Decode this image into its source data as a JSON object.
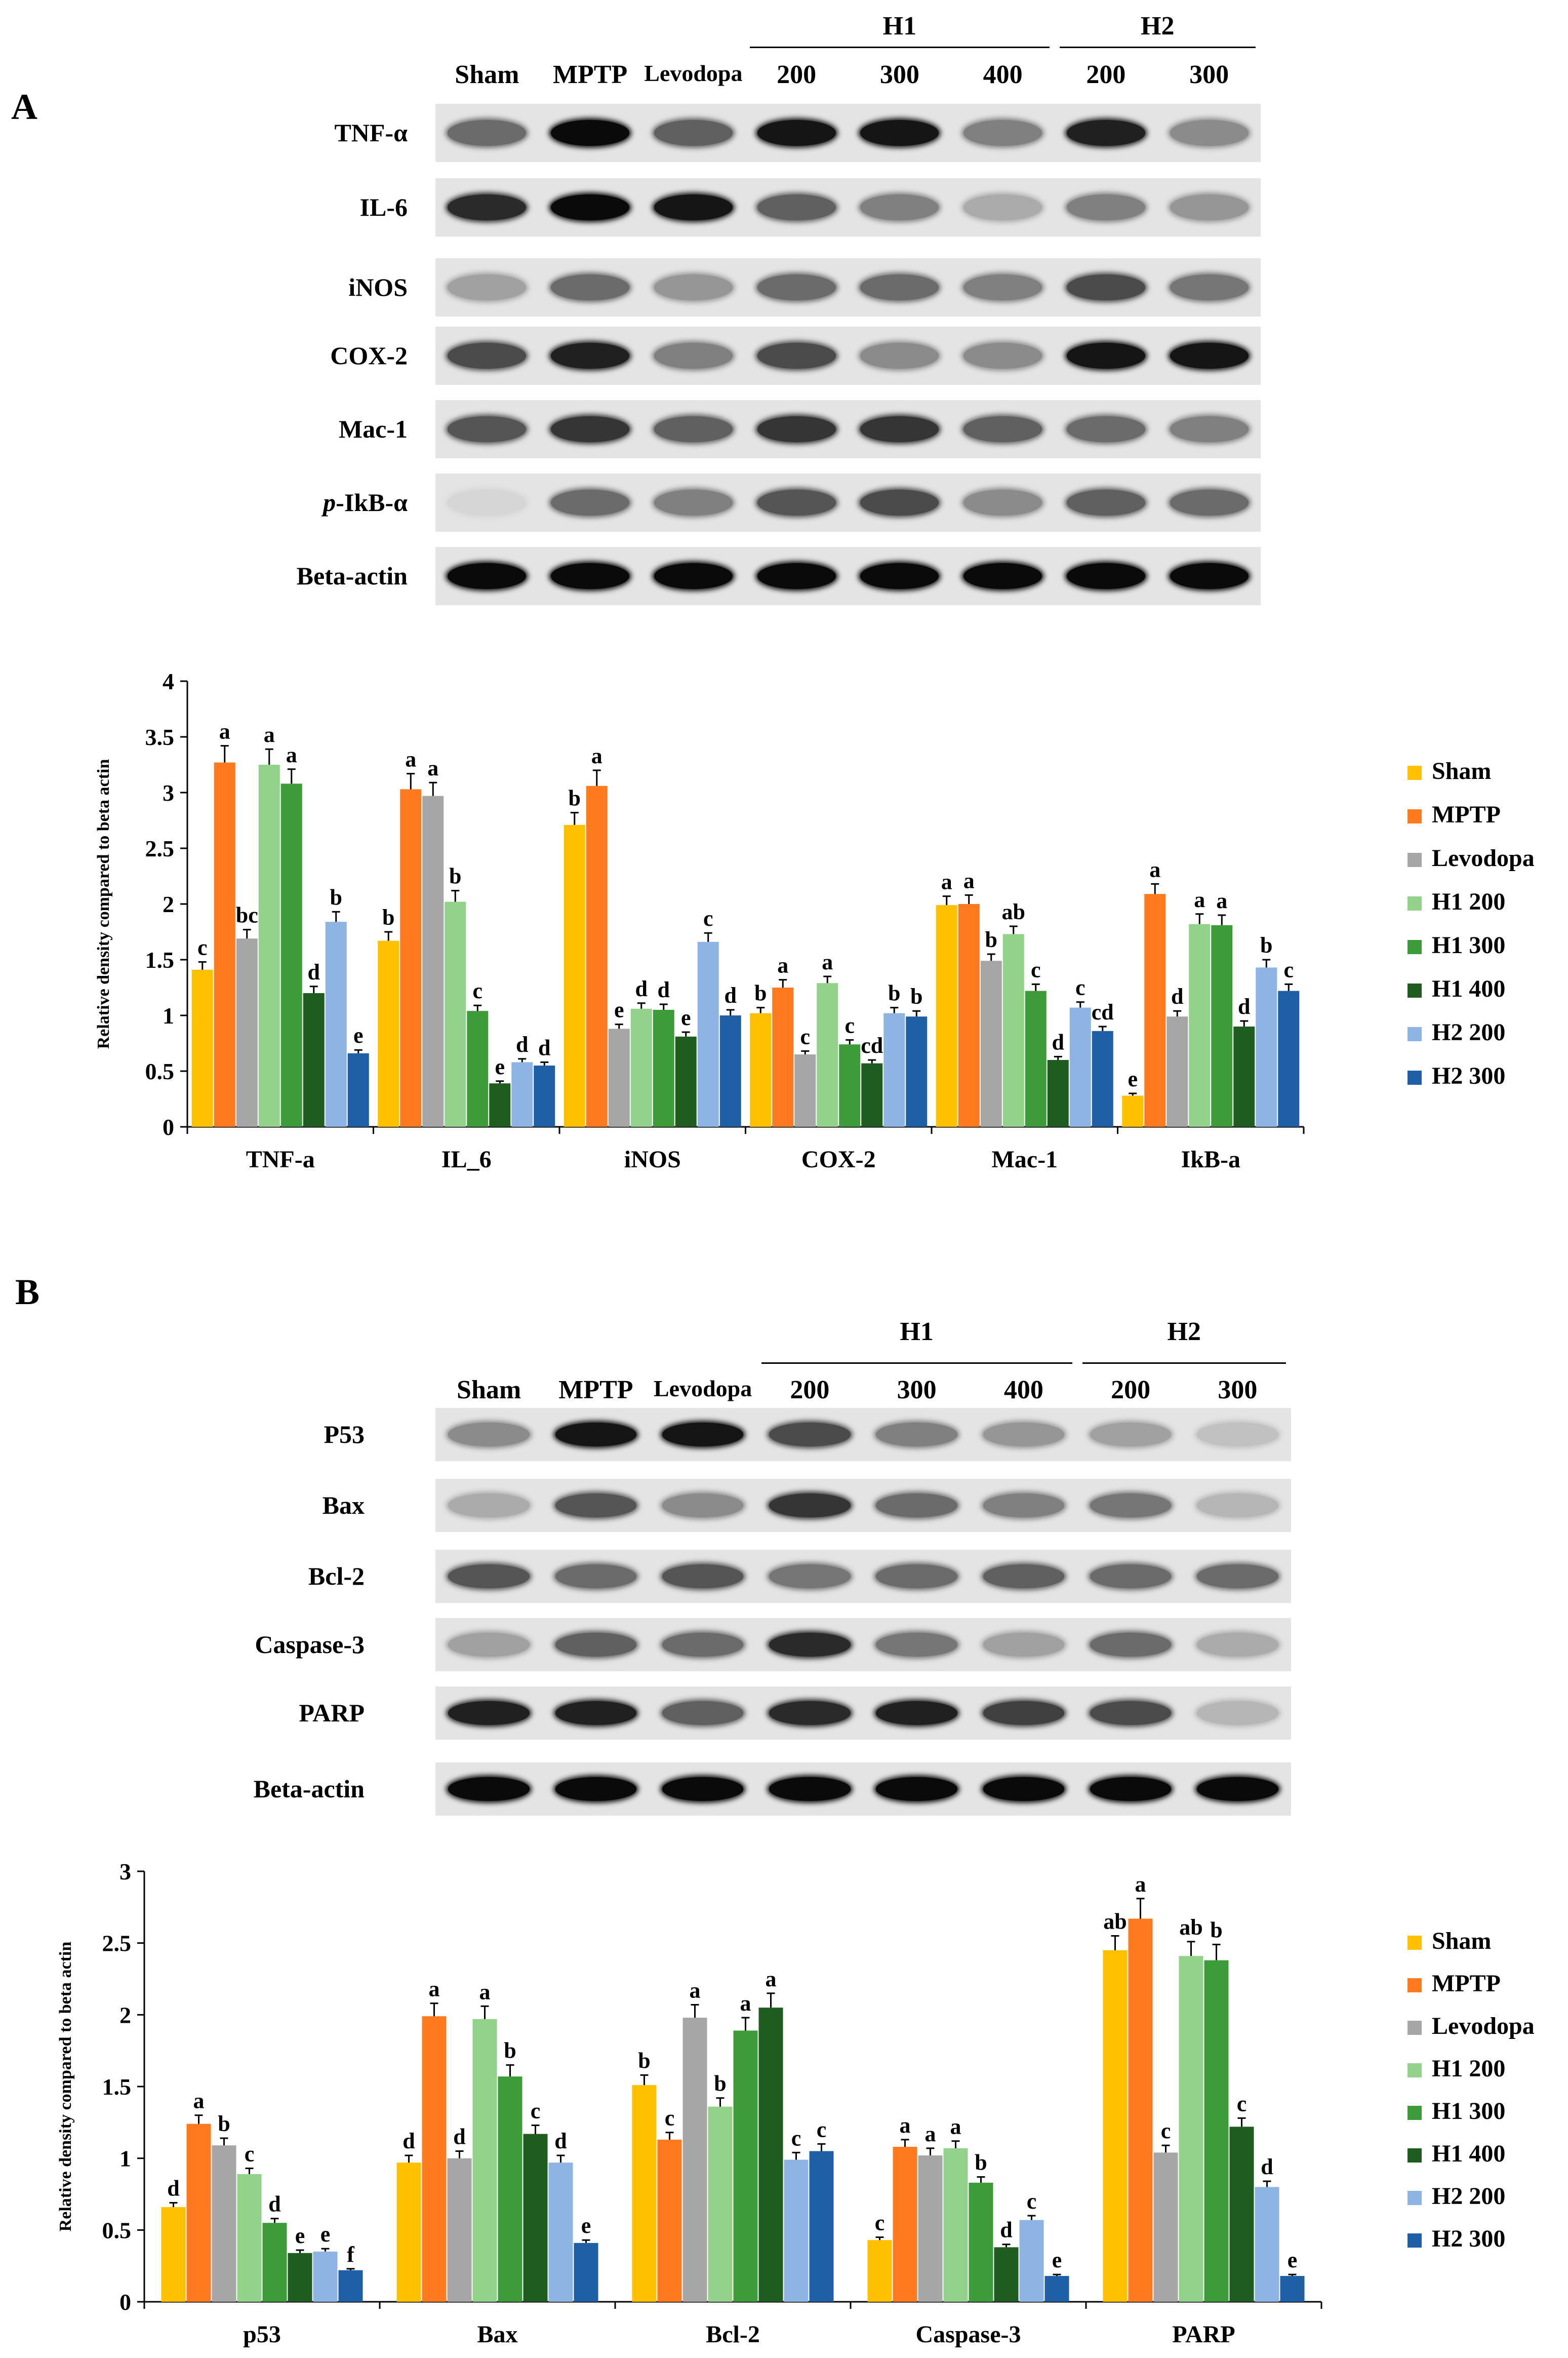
{
  "colors": {
    "Sham": "#FFC000",
    "MPTP": "#FF7A1F",
    "Levodopa": "#A6A6A6",
    "H1 200": "#92D28A",
    "H1 300": "#3E9B3A",
    "H1 400": "#1F5C1F",
    "H2 200": "#8DB4E2",
    "H2 300": "#1F5FA6"
  },
  "panelA": {
    "letter": "A",
    "lanes": [
      "Sham",
      "MPTP",
      "Levodopa",
      "200",
      "300",
      "400",
      "200",
      "300"
    ],
    "groups": [
      {
        "label": "H1"
      },
      {
        "label": "H2"
      }
    ],
    "rows": [
      {
        "label": "TNF-α",
        "intensity": [
          0.55,
          1.0,
          0.6,
          0.95,
          0.95,
          0.45,
          0.9,
          0.4
        ]
      },
      {
        "label": "IL-6",
        "intensity": [
          0.85,
          1.0,
          0.95,
          0.6,
          0.45,
          0.25,
          0.45,
          0.35
        ]
      },
      {
        "label": "iNOS",
        "intensity": [
          0.3,
          0.55,
          0.35,
          0.55,
          0.55,
          0.45,
          0.7,
          0.5
        ]
      },
      {
        "label": "COX-2",
        "intensity": [
          0.7,
          0.9,
          0.45,
          0.7,
          0.4,
          0.4,
          0.95,
          0.95
        ]
      },
      {
        "label": "Mac-1",
        "intensity": [
          0.65,
          0.8,
          0.6,
          0.8,
          0.8,
          0.6,
          0.55,
          0.45
        ]
      },
      {
        "label": "p-IkB-α",
        "prefix": "p",
        "suffix": "-IkB-α",
        "intensity": [
          0.05,
          0.55,
          0.45,
          0.65,
          0.7,
          0.4,
          0.6,
          0.55
        ]
      },
      {
        "label": "Beta-actin",
        "intensity": [
          1.0,
          1.0,
          1.0,
          1.0,
          1.0,
          1.0,
          1.0,
          1.0
        ]
      }
    ]
  },
  "panelB": {
    "letter": "B",
    "lanes": [
      "Sham",
      "MPTP",
      "Levodopa",
      "200",
      "300",
      "400",
      "200",
      "300"
    ],
    "groups": [
      {
        "label": "H1"
      },
      {
        "label": "H2"
      }
    ],
    "rows": [
      {
        "label": "P53",
        "intensity": [
          0.4,
          0.95,
          0.95,
          0.7,
          0.45,
          0.35,
          0.3,
          0.15
        ]
      },
      {
        "label": "Bax",
        "intensity": [
          0.25,
          0.65,
          0.4,
          0.8,
          0.55,
          0.45,
          0.5,
          0.2
        ]
      },
      {
        "label": "Bcl-2",
        "intensity": [
          0.65,
          0.55,
          0.65,
          0.5,
          0.55,
          0.6,
          0.55,
          0.55
        ]
      },
      {
        "label": "Caspase-3",
        "intensity": [
          0.3,
          0.6,
          0.55,
          0.85,
          0.5,
          0.3,
          0.55,
          0.25
        ]
      },
      {
        "label": "PARP",
        "intensity": [
          0.9,
          0.9,
          0.6,
          0.85,
          0.9,
          0.75,
          0.7,
          0.2
        ]
      },
      {
        "label": "Beta-actin",
        "intensity": [
          1.0,
          1.0,
          1.0,
          1.0,
          1.0,
          1.0,
          1.0,
          1.0
        ]
      }
    ]
  },
  "chart_data": [
    {
      "type": "bar",
      "ylabel": "Relative density compared to beta actin",
      "ylim": [
        0,
        4
      ],
      "yticks": [
        "0",
        "0.5",
        "1",
        "1.5",
        "2",
        "2.5",
        "3",
        "3.5",
        "4"
      ],
      "ytick_values": [
        0,
        0.5,
        1,
        1.5,
        2,
        2.5,
        3,
        3.5,
        4
      ],
      "categories": [
        "TNF-a",
        "IL_6",
        "iNOS",
        "COX-2",
        "Mac-1",
        "IkB-a"
      ],
      "legend_position": "right",
      "series": [
        {
          "name": "Sham",
          "values": [
            1.41,
            1.67,
            2.71,
            1.02,
            1.99,
            0.28
          ],
          "errors": [
            0.07,
            0.08,
            0.11,
            0.05,
            0.08,
            0.02
          ],
          "letters": [
            "c",
            "b",
            "b",
            "b",
            "a",
            "e"
          ]
        },
        {
          "name": "MPTP",
          "values": [
            3.27,
            3.03,
            3.06,
            1.25,
            2.0,
            2.09
          ],
          "errors": [
            0.15,
            0.14,
            0.14,
            0.07,
            0.08,
            0.09
          ],
          "letters": [
            "a",
            "a",
            "a",
            "a",
            "a",
            "a"
          ]
        },
        {
          "name": "Levodopa",
          "values": [
            1.69,
            2.97,
            0.88,
            0.65,
            1.49,
            0.99
          ],
          "errors": [
            0.08,
            0.12,
            0.04,
            0.03,
            0.06,
            0.05
          ],
          "letters": [
            "bc",
            "a",
            "e",
            "c",
            "b",
            "d"
          ]
        },
        {
          "name": "H1 200",
          "values": [
            3.25,
            2.02,
            1.06,
            1.29,
            1.73,
            1.82
          ],
          "errors": [
            0.14,
            0.1,
            0.05,
            0.06,
            0.07,
            0.09
          ],
          "letters": [
            "a",
            "b",
            "d",
            "a",
            "ab",
            "a"
          ]
        },
        {
          "name": "H1 300",
          "values": [
            3.08,
            1.04,
            1.05,
            0.74,
            1.22,
            1.81
          ],
          "errors": [
            0.13,
            0.05,
            0.05,
            0.04,
            0.06,
            0.09
          ],
          "letters": [
            "a",
            "c",
            "d",
            "c",
            "c",
            "a"
          ]
        },
        {
          "name": "H1 400",
          "values": [
            1.2,
            0.39,
            0.81,
            0.57,
            0.6,
            0.9
          ],
          "errors": [
            0.06,
            0.02,
            0.04,
            0.03,
            0.03,
            0.05
          ],
          "letters": [
            "d",
            "e",
            "e",
            "cd",
            "d",
            "d"
          ]
        },
        {
          "name": "H2 200",
          "values": [
            1.84,
            0.58,
            1.66,
            1.02,
            1.07,
            1.43
          ],
          "errors": [
            0.09,
            0.03,
            0.08,
            0.05,
            0.05,
            0.07
          ],
          "letters": [
            "b",
            "d",
            "c",
            "b",
            "c",
            "b"
          ]
        },
        {
          "name": "H2 300",
          "values": [
            0.66,
            0.55,
            1.0,
            0.99,
            0.86,
            1.22
          ],
          "errors": [
            0.03,
            0.03,
            0.05,
            0.05,
            0.04,
            0.06
          ],
          "letters": [
            "e",
            "d",
            "d",
            "b",
            "cd",
            "c"
          ]
        }
      ]
    },
    {
      "type": "bar",
      "ylabel": "Relative density compared to beta actin",
      "ylim": [
        0,
        3
      ],
      "yticks": [
        "0",
        "0.5",
        "1",
        "1.5",
        "2",
        "2.5",
        "3"
      ],
      "ytick_values": [
        0,
        0.5,
        1,
        1.5,
        2,
        2.5,
        3
      ],
      "categories": [
        "p53",
        "Bax",
        "Bcl-2",
        "Caspase-3",
        "PARP"
      ],
      "legend_position": "right",
      "series": [
        {
          "name": "Sham",
          "values": [
            0.66,
            0.97,
            1.51,
            0.43,
            2.45
          ],
          "errors": [
            0.03,
            0.05,
            0.07,
            0.02,
            0.1
          ],
          "letters": [
            "d",
            "d",
            "b",
            "c",
            "ab"
          ]
        },
        {
          "name": "MPTP",
          "values": [
            1.24,
            1.99,
            1.13,
            1.08,
            2.67
          ],
          "errors": [
            0.06,
            0.09,
            0.05,
            0.05,
            0.14
          ],
          "letters": [
            "a",
            "a",
            "c",
            "a",
            "a"
          ]
        },
        {
          "name": "Levodopa",
          "values": [
            1.09,
            1.0,
            1.98,
            1.02,
            1.04
          ],
          "errors": [
            0.05,
            0.05,
            0.09,
            0.05,
            0.05
          ],
          "letters": [
            "b",
            "d",
            "a",
            "a",
            "c"
          ]
        },
        {
          "name": "H1 200",
          "values": [
            0.89,
            1.97,
            1.36,
            1.07,
            2.41
          ],
          "errors": [
            0.04,
            0.09,
            0.06,
            0.05,
            0.1
          ],
          "letters": [
            "c",
            "a",
            "b",
            "a",
            "ab"
          ]
        },
        {
          "name": "H1 300",
          "values": [
            0.55,
            1.57,
            1.89,
            0.83,
            2.38
          ],
          "errors": [
            0.03,
            0.08,
            0.09,
            0.04,
            0.11
          ],
          "letters": [
            "d",
            "b",
            "a",
            "b",
            "b"
          ]
        },
        {
          "name": "H1 400",
          "values": [
            0.34,
            1.17,
            2.05,
            0.38,
            1.22
          ],
          "errors": [
            0.02,
            0.06,
            0.1,
            0.02,
            0.06
          ],
          "letters": [
            "e",
            "c",
            "a",
            "d",
            "c"
          ]
        },
        {
          "name": "H2 200",
          "values": [
            0.35,
            0.97,
            0.99,
            0.57,
            0.8
          ],
          "errors": [
            0.02,
            0.05,
            0.05,
            0.03,
            0.04
          ],
          "letters": [
            "e",
            "d",
            "c",
            "c",
            "d"
          ]
        },
        {
          "name": "H2 300",
          "values": [
            0.22,
            0.41,
            1.05,
            0.18,
            0.18
          ],
          "errors": [
            0.01,
            0.02,
            0.05,
            0.01,
            0.01
          ],
          "letters": [
            "f",
            "e",
            "c",
            "e",
            "e"
          ]
        }
      ]
    }
  ]
}
